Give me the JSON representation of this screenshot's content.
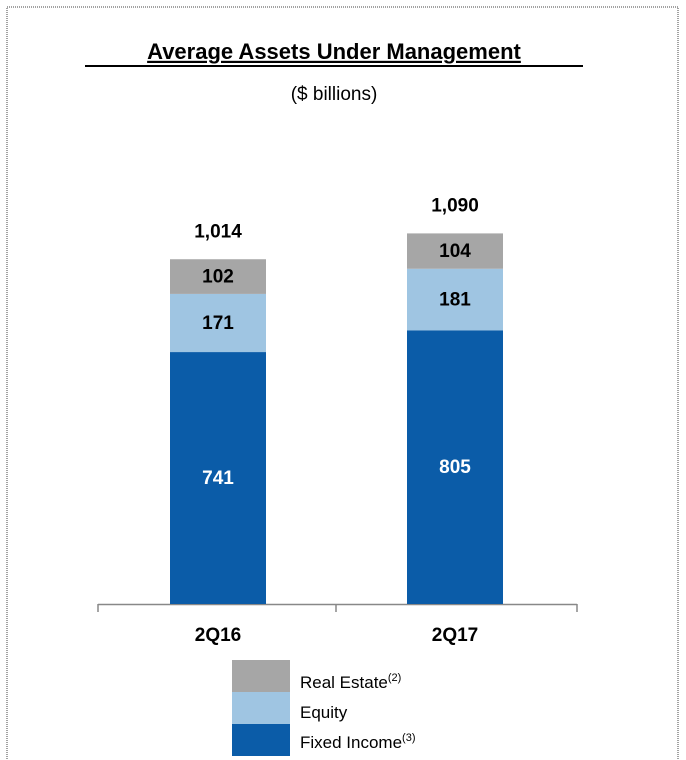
{
  "chart_data": {
    "type": "stacked-bar",
    "title": "Average Assets Under Management",
    "subtitle": "($ billions)",
    "categories": [
      "2Q16",
      "2Q17"
    ],
    "series": [
      {
        "name": "Fixed Income",
        "note": "(3)",
        "color": "#0b5ca8",
        "label_color": "#ffffff",
        "values": [
          741,
          805
        ]
      },
      {
        "name": "Equity",
        "note": null,
        "color": "#9fc5e2",
        "label_color": "#000000",
        "values": [
          171,
          181
        ]
      },
      {
        "name": "Real Estate",
        "note": "(2)",
        "color": "#a6a6a6",
        "label_color": "#000000",
        "values": [
          102,
          104
        ]
      }
    ],
    "totals": {
      "values": [
        1014,
        1090
      ],
      "value_labels": [
        "1,014",
        "1,090"
      ]
    }
  }
}
